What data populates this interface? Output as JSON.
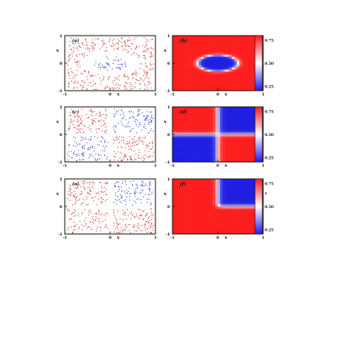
{
  "colors": {
    "class_pos": "#d63a3a",
    "class_neg": "#3a4fd6",
    "cmap_high": "#ee0000",
    "cmap_mid": "#ffffff",
    "cmap_low": "#0000ee",
    "axis": "#111111"
  },
  "chart_data": [
    {
      "panel": "(a)",
      "type": "scatter",
      "title": "",
      "xlabel": "x1",
      "ylabel": "x2",
      "xlim": [
        -1,
        1
      ],
      "ylim": [
        -1,
        1
      ],
      "xticks": [
        "-1",
        "0",
        "1"
      ],
      "yticks": [
        "1",
        "0",
        "-1"
      ],
      "pattern": "circle",
      "description_of_classes": "blue points inside ellipse centered at (0,0), red points outside",
      "ellipse": {
        "cx": 0,
        "cy": 0,
        "rx": 0.45,
        "ry": 0.3
      }
    },
    {
      "panel": "(b)",
      "type": "heatmap",
      "title": "",
      "xlabel": "x1",
      "ylabel": "x2",
      "xlim": [
        -1,
        1
      ],
      "ylim": [
        -1,
        1
      ],
      "xticks": [
        "-1",
        "0",
        "1"
      ],
      "yticks": [
        "1",
        "0",
        "-1"
      ],
      "pattern": "circle",
      "ellipse": {
        "cx": 0,
        "cy": 0,
        "rx": 0.45,
        "ry": 0.3
      },
      "colorbar": {
        "ticks": [
          "0.75",
          "0.50",
          "0.25"
        ],
        "range": [
          0.2,
          0.8
        ]
      }
    },
    {
      "panel": "(c)",
      "type": "scatter",
      "title": "",
      "xlabel": "x1",
      "ylabel": "x2",
      "xlim": [
        -1,
        1
      ],
      "ylim": [
        -1,
        1
      ],
      "xticks": [
        "-1",
        "0",
        "1"
      ],
      "yticks": [
        "1",
        "0",
        "-1"
      ],
      "pattern": "xor",
      "quadrants": {
        "top_left": "red",
        "top_right": "blue",
        "bottom_left": "blue",
        "bottom_right": "red"
      }
    },
    {
      "panel": "(d)",
      "type": "heatmap",
      "title": "",
      "xlabel": "x1",
      "ylabel": "x2",
      "xlim": [
        -1,
        1
      ],
      "ylim": [
        -1,
        1
      ],
      "xticks": [
        "-1",
        "0",
        "1"
      ],
      "yticks": [
        "1",
        "0",
        "-1"
      ],
      "pattern": "xor",
      "quadrants": {
        "top_left": "red",
        "top_right": "blue",
        "bottom_left": "blue",
        "bottom_right": "red"
      },
      "colorbar": {
        "ticks": [
          "0.75",
          "0.50",
          "0.25"
        ],
        "range": [
          0.2,
          0.8
        ]
      }
    },
    {
      "panel": "(e)",
      "type": "scatter",
      "title": "",
      "xlabel": "x1",
      "ylabel": "x2",
      "xlim": [
        -1,
        1
      ],
      "ylim": [
        -1,
        1
      ],
      "xticks": [
        "-1",
        "0",
        "1"
      ],
      "yticks": [
        "1",
        "0",
        "-1"
      ],
      "pattern": "and",
      "quadrants": {
        "top_left": "red",
        "top_right": "blue",
        "bottom_left": "red",
        "bottom_right": "red"
      }
    },
    {
      "panel": "(f)",
      "type": "heatmap",
      "title": "",
      "xlabel": "x1",
      "ylabel": "x2",
      "xlim": [
        -1,
        1
      ],
      "ylim": [
        -1,
        1
      ],
      "xticks": [
        "-1",
        "0",
        "1"
      ],
      "yticks": [
        "1",
        "0",
        "-1"
      ],
      "pattern": "and",
      "quadrants": {
        "top_left": "red",
        "top_right": "blue",
        "bottom_left": "red",
        "bottom_right": "red"
      },
      "colorbar": {
        "ticks": [
          "0.75",
          "0.50",
          "0.25"
        ],
        "range": [
          0.2,
          0.8
        ],
        "label": "x1"
      }
    }
  ]
}
